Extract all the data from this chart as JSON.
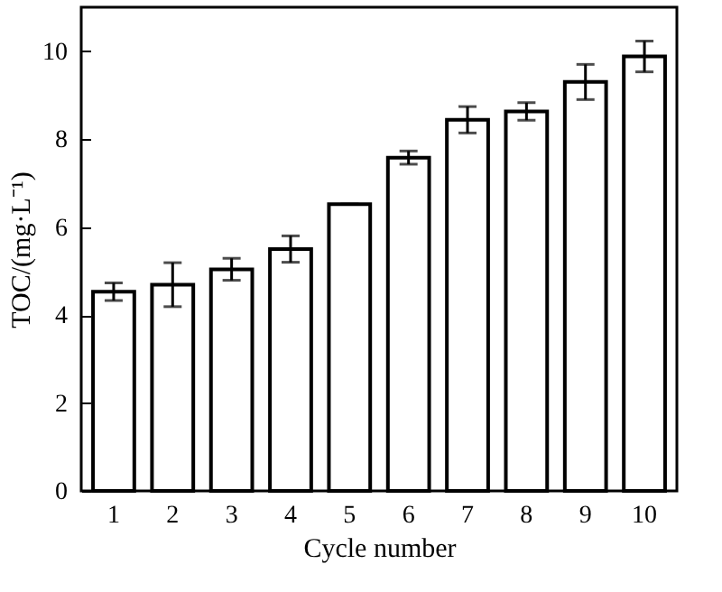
{
  "chart_data": {
    "type": "bar",
    "xlabel": "Cycle number",
    "ylabel": "TOC/(mg·L⁻¹)",
    "categories": [
      "1",
      "2",
      "3",
      "4",
      "5",
      "6",
      "7",
      "8",
      "9",
      "10"
    ],
    "values": [
      4.53,
      4.69,
      5.04,
      5.5,
      6.52,
      7.58,
      8.44,
      8.63,
      9.3,
      9.88
    ],
    "errors": [
      0.2,
      0.5,
      0.25,
      0.3,
      0,
      0.15,
      0.3,
      0.2,
      0.4,
      0.35
    ],
    "color": "#ffffff",
    "ylim": [
      0,
      11
    ],
    "yticks": [
      0,
      2,
      4,
      6,
      8,
      10
    ],
    "grid": false
  }
}
